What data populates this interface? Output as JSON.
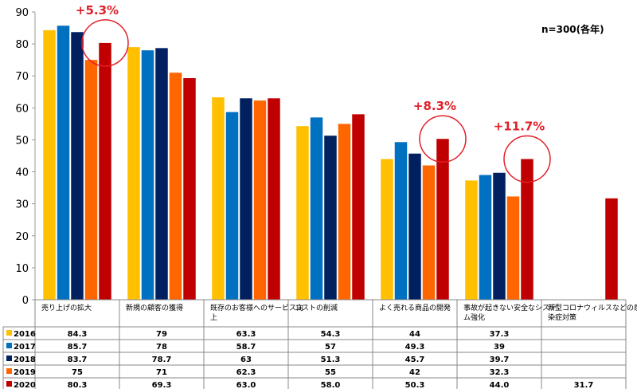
{
  "chart_data": {
    "type": "bar",
    "ylim": [
      0,
      90
    ],
    "yticks": [
      0,
      10,
      20,
      30,
      40,
      50,
      60,
      70,
      80,
      90
    ],
    "grid": false,
    "legend_placement": "table-left",
    "categories": [
      "売り上げの拡大",
      "新規の顧客の獲得",
      "既存のお客様へのサービス向上",
      "コストの削減",
      "よく売れる商品の開発",
      "事故が起きない安全なシステム強化",
      "新型コロナウィルスなどの感染症対策"
    ],
    "category_lines": [
      [
        "売り上げの拡大"
      ],
      [
        "新規の顧客の獲得"
      ],
      [
        "既存のお客様へのサービス向",
        "上"
      ],
      [
        "コストの削減"
      ],
      [
        "よく売れる商品の開発"
      ],
      [
        "事故が起きない安全なシステ",
        "ム強化"
      ],
      [
        "新型コロナウィルスなどの感",
        "染症対策"
      ]
    ],
    "series": [
      {
        "name": "2016",
        "color": "#ffc000",
        "values": [
          84.3,
          79,
          63.3,
          54.3,
          44,
          37.3,
          null
        ],
        "labels": [
          "84.3",
          "79",
          "63.3",
          "54.3",
          "44",
          "37.3",
          ""
        ]
      },
      {
        "name": "2017",
        "color": "#0070c0",
        "values": [
          85.7,
          78,
          58.7,
          57,
          49.3,
          39,
          null
        ],
        "labels": [
          "85.7",
          "78",
          "58.7",
          "57",
          "49.3",
          "39",
          ""
        ]
      },
      {
        "name": "2018",
        "color": "#002060",
        "values": [
          83.7,
          78.7,
          63,
          51.3,
          45.7,
          39.7,
          null
        ],
        "labels": [
          "83.7",
          "78.7",
          "63",
          "51.3",
          "45.7",
          "39.7",
          ""
        ]
      },
      {
        "name": "2019",
        "color": "#ff6600",
        "values": [
          75,
          71,
          62.3,
          55,
          42,
          32.3,
          null
        ],
        "labels": [
          "75",
          "71",
          "62.3",
          "55",
          "42",
          "32.3",
          ""
        ]
      },
      {
        "name": "2020",
        "color": "#c00000",
        "values": [
          80.3,
          69.3,
          63.0,
          58.0,
          50.3,
          44.0,
          31.7
        ],
        "labels": [
          "80.3",
          "69.3",
          "63.0",
          "58.0",
          "50.3",
          "44.0",
          "31.7"
        ]
      }
    ],
    "annotations": [
      {
        "text": "+5.3%",
        "category_index": 0
      },
      {
        "text": "+8.3%",
        "category_index": 4
      },
      {
        "text": "+11.7%",
        "category_index": 5
      }
    ],
    "note": "n=300(各年)"
  }
}
